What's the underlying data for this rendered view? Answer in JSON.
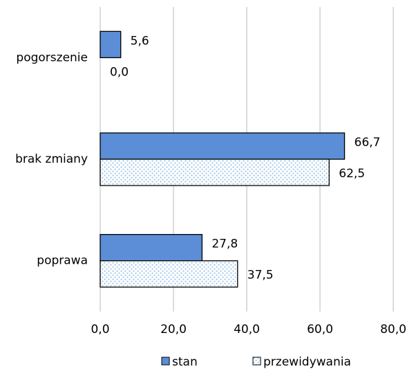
{
  "chart_data": {
    "type": "hbar",
    "categories": [
      "pogorszenie",
      "brak zmiany",
      "poprawa"
    ],
    "series": [
      {
        "name": "stan",
        "color": "#5b8ed6",
        "values": [
          5.6,
          66.7,
          27.8
        ],
        "value_labels": [
          "5,6",
          "66,7",
          "27,8"
        ]
      },
      {
        "name": "przewidywania",
        "color": "#9dc3e6",
        "pattern": "dots",
        "values": [
          0.0,
          62.5,
          37.5
        ],
        "value_labels": [
          "0,0",
          "62,5",
          "37,5"
        ]
      }
    ],
    "xlim": [
      0,
      80
    ],
    "xticks": [
      {
        "value": 0,
        "label": "0,0"
      },
      {
        "value": 20,
        "label": "20,0"
      },
      {
        "value": 40,
        "label": "40,0"
      },
      {
        "value": 60,
        "label": "60,0"
      },
      {
        "value": 80,
        "label": "80,0"
      }
    ],
    "grid": true,
    "legend": "bottom"
  }
}
